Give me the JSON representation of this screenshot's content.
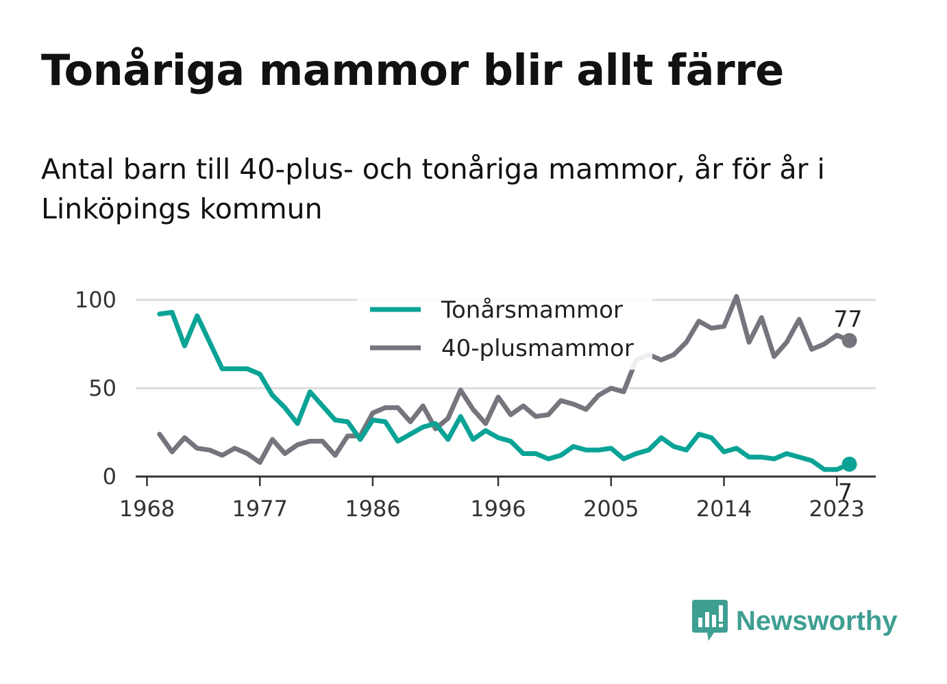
{
  "title": "Tonåriga mammor blir allt färre",
  "subtitle": "Antal barn till 40-plus- och tonåriga mammor, år för år i Linköpings kommun",
  "brand": "Newsworthy",
  "colors": {
    "teen": "#0aa396",
    "forty": "#76757d",
    "grid": "#dcdcdc",
    "axis": "#333333",
    "brand": "#3f9e92"
  },
  "chart_data": {
    "type": "line",
    "x": [
      1969,
      1970,
      1971,
      1972,
      1973,
      1974,
      1975,
      1976,
      1977,
      1978,
      1979,
      1980,
      1981,
      1982,
      1983,
      1984,
      1985,
      1986,
      1987,
      1988,
      1989,
      1990,
      1991,
      1992,
      1993,
      1994,
      1995,
      1996,
      1997,
      1998,
      1999,
      2000,
      2001,
      2002,
      2003,
      2004,
      2005,
      2006,
      2007,
      2008,
      2009,
      2010,
      2011,
      2012,
      2013,
      2014,
      2015,
      2016,
      2017,
      2018,
      2019,
      2020,
      2021,
      2022,
      2023,
      2024
    ],
    "series": [
      {
        "name": "Tonårsmammor",
        "color": "#0aa396",
        "values": [
          92,
          93,
          74,
          91,
          76,
          61,
          61,
          61,
          58,
          46,
          39,
          30,
          48,
          40,
          32,
          31,
          21,
          32,
          31,
          20,
          24,
          28,
          30,
          21,
          34,
          21,
          26,
          22,
          20,
          13,
          13,
          10,
          12,
          17,
          15,
          15,
          16,
          10,
          13,
          15,
          22,
          17,
          15,
          24,
          22,
          14,
          16,
          11,
          11,
          10,
          13,
          11,
          9,
          4,
          4,
          7
        ]
      },
      {
        "name": "40-plusmammor",
        "color": "#76757d",
        "values": [
          24,
          14,
          22,
          16,
          15,
          12,
          16,
          13,
          8,
          21,
          13,
          18,
          20,
          20,
          12,
          23,
          23,
          36,
          39,
          39,
          31,
          40,
          27,
          33,
          49,
          38,
          30,
          45,
          35,
          40,
          34,
          35,
          43,
          41,
          38,
          46,
          50,
          48,
          66,
          69,
          66,
          69,
          76,
          88,
          84,
          85,
          102,
          76,
          90,
          68,
          76,
          89,
          72,
          75,
          80,
          77
        ]
      }
    ],
    "xticks": [
      "1968",
      "1977",
      "1986",
      "1996",
      "2005",
      "2014",
      "2023"
    ],
    "yticks": [
      "0",
      "50",
      "100"
    ],
    "ylim": [
      0,
      100
    ],
    "legend": "top-center",
    "end_labels": [
      "77",
      "7"
    ],
    "grid": true
  }
}
